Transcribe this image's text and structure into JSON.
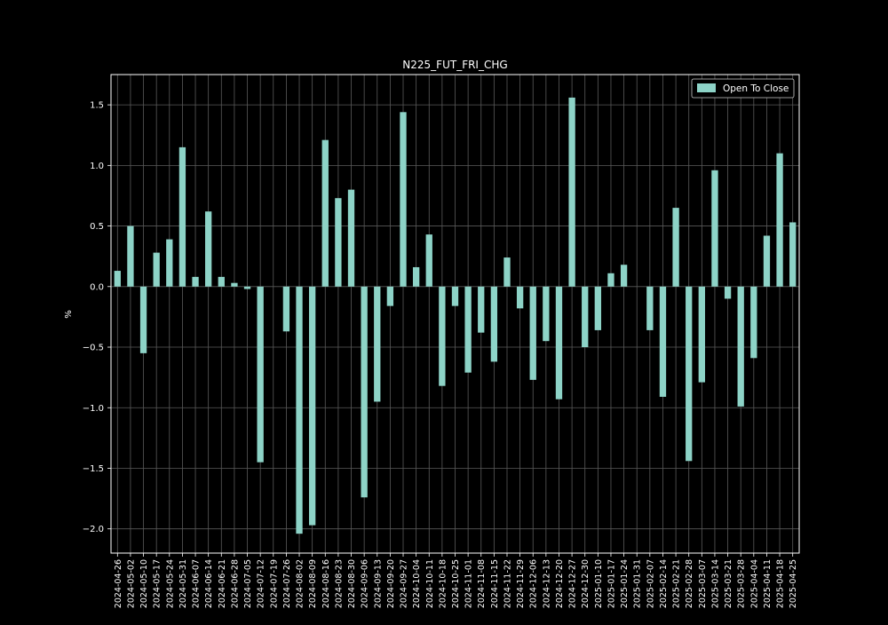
{
  "chart_data": {
    "type": "bar",
    "title": "N225_FUT_FRI_CHG",
    "xlabel": "",
    "ylabel": "%",
    "ylim": [
      -2.2,
      1.75
    ],
    "yticks": [
      1.5,
      1.0,
      0.5,
      0.0,
      -0.5,
      -1.0,
      -1.5,
      -2.0
    ],
    "ytick_labels": [
      "1.5",
      "1.0",
      "0.5",
      "0.0",
      "−0.5",
      "−1.0",
      "−1.5",
      "−2.0"
    ],
    "grid": true,
    "legend_position": "top-right",
    "categories": [
      "2024-04-26",
      "2024-05-02",
      "2024-05-10",
      "2024-05-17",
      "2024-05-24",
      "2024-05-31",
      "2024-06-07",
      "2024-06-14",
      "2024-06-21",
      "2024-06-28",
      "2024-07-05",
      "2024-07-12",
      "2024-07-19",
      "2024-07-26",
      "2024-08-02",
      "2024-08-09",
      "2024-08-16",
      "2024-08-23",
      "2024-08-30",
      "2024-09-06",
      "2024-09-13",
      "2024-09-20",
      "2024-09-27",
      "2024-10-04",
      "2024-10-11",
      "2024-10-18",
      "2024-10-25",
      "2024-11-01",
      "2024-11-08",
      "2024-11-15",
      "2024-11-22",
      "2024-11-29",
      "2024-12-06",
      "2024-12-13",
      "2024-12-20",
      "2024-12-27",
      "2024-12-30",
      "2025-01-10",
      "2025-01-17",
      "2025-01-24",
      "2025-01-31",
      "2025-02-07",
      "2025-02-14",
      "2025-02-21",
      "2025-02-28",
      "2025-03-07",
      "2025-03-14",
      "2025-03-21",
      "2025-03-28",
      "2025-04-04",
      "2025-04-11",
      "2025-04-18",
      "2025-04-25"
    ],
    "series": [
      {
        "name": "Open To Close",
        "color": "#8dd3c7",
        "values": [
          0.13,
          0.5,
          -0.55,
          0.28,
          0.39,
          1.15,
          0.08,
          0.62,
          0.08,
          0.03,
          -0.02,
          -1.45,
          0.0,
          -0.37,
          -2.04,
          -1.97,
          1.21,
          0.73,
          0.8,
          -1.74,
          -0.95,
          -0.16,
          1.44,
          0.16,
          0.43,
          -0.82,
          -0.16,
          -0.71,
          -0.38,
          -0.62,
          0.24,
          -0.18,
          -0.77,
          -0.45,
          -0.93,
          1.56,
          -0.5,
          -0.36,
          0.11,
          0.18,
          0.0,
          -0.36,
          -0.91,
          0.65,
          -1.44,
          -0.79,
          0.96,
          -0.1,
          -0.99,
          -0.59,
          0.42,
          1.1,
          0.53
        ]
      }
    ]
  },
  "colors": {
    "background": "#000000",
    "axes": "#ffffff",
    "grid": "#5a5a5a",
    "text": "#ffffff"
  }
}
